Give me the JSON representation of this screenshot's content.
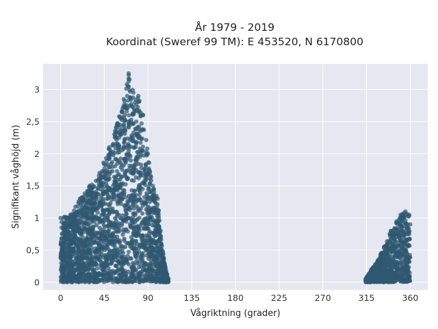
{
  "chart_data": {
    "type": "scatter",
    "title_line1": "År 1979 - 2019",
    "title_line2": "Koordinat (Sweref 99 TM): E 453520, N 6170800",
    "xlabel": "Vågriktning (grader)",
    "ylabel": "Signifikant våghöjd (m)",
    "xlim": [
      -18,
      378
    ],
    "ylim": [
      -0.12,
      3.4
    ],
    "x_ticks": [
      0,
      45,
      90,
      135,
      180,
      225,
      270,
      315,
      360
    ],
    "y_ticks": [
      0,
      0.5,
      1,
      1.5,
      2,
      2.5,
      3
    ],
    "y_tick_labels": [
      "0",
      "0,5",
      "1",
      "1,5",
      "2",
      "2,5",
      "3"
    ],
    "grid": true,
    "colors": {
      "plot_bg": "#e5e8f0",
      "grid": "#ffffff",
      "marker": "#2f5870",
      "marker_opacity": 0.7
    },
    "clusters": [
      {
        "name": "cluster-1",
        "envelope": [
          [
            0,
            1.0
          ],
          [
            10,
            1.05
          ],
          [
            20,
            1.3
          ],
          [
            30,
            1.5
          ],
          [
            40,
            1.7
          ],
          [
            50,
            2.1
          ],
          [
            58,
            2.45
          ],
          [
            65,
            2.85
          ],
          [
            70,
            3.25
          ],
          [
            75,
            2.95
          ],
          [
            80,
            2.9
          ],
          [
            85,
            2.6
          ],
          [
            90,
            2.0
          ],
          [
            95,
            1.5
          ],
          [
            100,
            1.3
          ],
          [
            103,
            0.8
          ],
          [
            107,
            0.3
          ],
          [
            111,
            0.05
          ]
        ]
      },
      {
        "name": "cluster-2",
        "envelope": [
          [
            314,
            0.05
          ],
          [
            320,
            0.2
          ],
          [
            327,
            0.35
          ],
          [
            333,
            0.55
          ],
          [
            340,
            0.8
          ],
          [
            346,
            0.95
          ],
          [
            350,
            1.05
          ],
          [
            355,
            1.1
          ],
          [
            359,
            1.05
          ],
          [
            360,
            0.9
          ]
        ]
      }
    ]
  }
}
